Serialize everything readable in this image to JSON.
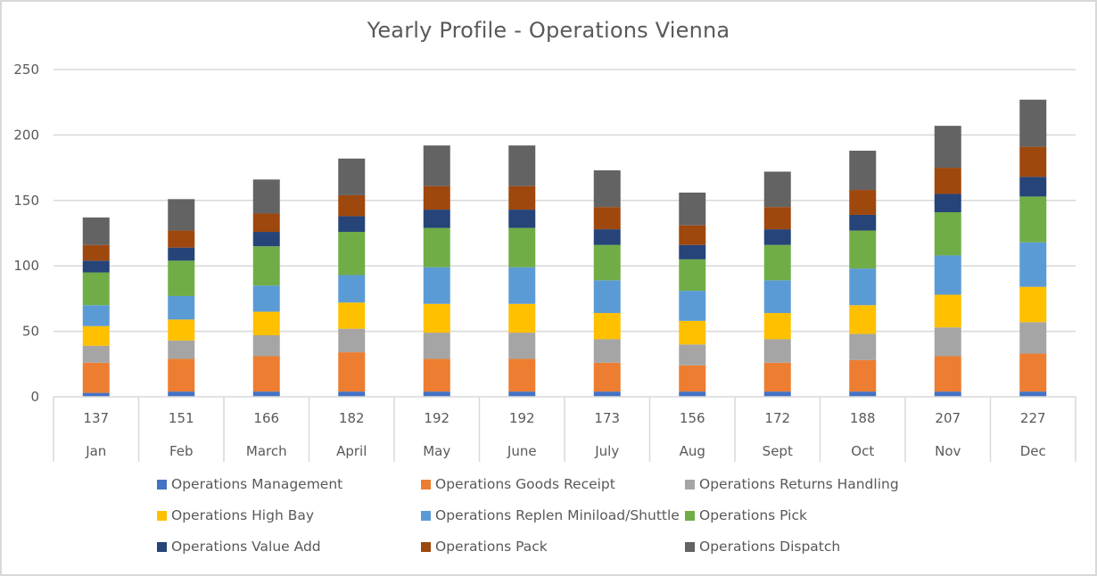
{
  "chart_data": {
    "type": "bar",
    "stacked": true,
    "title": "Yearly Profile - Operations Vienna",
    "xlabel": "",
    "ylabel": "",
    "ylim": [
      0,
      250
    ],
    "yticks": [
      0,
      50,
      100,
      150,
      200,
      250
    ],
    "grid": true,
    "legend_position": "bottom",
    "categories": [
      "Jan",
      "Feb",
      "March",
      "April",
      "May",
      "June",
      "July",
      "Aug",
      "Sept",
      "Oct",
      "Nov",
      "Dec"
    ],
    "totals": [
      137,
      151,
      166,
      182,
      192,
      192,
      173,
      156,
      172,
      188,
      207,
      227
    ],
    "series": [
      {
        "name": "Operations Management",
        "color": "#4472C4",
        "values": [
          3,
          4,
          4,
          4,
          4,
          4,
          4,
          4,
          4,
          4,
          4,
          4
        ]
      },
      {
        "name": "Operations Goods Receipt",
        "color": "#ED7D31",
        "values": [
          23,
          25,
          27,
          30,
          25,
          25,
          22,
          20,
          22,
          24,
          27,
          29
        ]
      },
      {
        "name": "Operations Returns Handling",
        "color": "#A5A5A5",
        "values": [
          13,
          14,
          16,
          18,
          20,
          20,
          18,
          16,
          18,
          20,
          22,
          24
        ]
      },
      {
        "name": "Operations High Bay",
        "color": "#FFC000",
        "values": [
          15,
          16,
          18,
          20,
          22,
          22,
          20,
          18,
          20,
          22,
          25,
          27
        ]
      },
      {
        "name": "Operations Replen Miniload/Shuttle",
        "color": "#5B9BD5",
        "values": [
          16,
          18,
          20,
          21,
          28,
          28,
          25,
          23,
          25,
          28,
          30,
          34
        ]
      },
      {
        "name": "Operations Pick",
        "color": "#70AD47",
        "values": [
          25,
          27,
          30,
          33,
          30,
          30,
          27,
          24,
          27,
          29,
          33,
          35
        ]
      },
      {
        "name": "Operations Value Add",
        "color": "#264478",
        "values": [
          9,
          10,
          11,
          12,
          14,
          14,
          12,
          11,
          12,
          12,
          14,
          15
        ]
      },
      {
        "name": "Operations Pack",
        "color": "#9E480E",
        "values": [
          12,
          13,
          14,
          16,
          18,
          18,
          17,
          15,
          17,
          19,
          20,
          23
        ]
      },
      {
        "name": "Operations Dispatch",
        "color": "#636363",
        "values": [
          21,
          24,
          26,
          28,
          31,
          31,
          28,
          25,
          27,
          30,
          32,
          36
        ]
      }
    ]
  }
}
